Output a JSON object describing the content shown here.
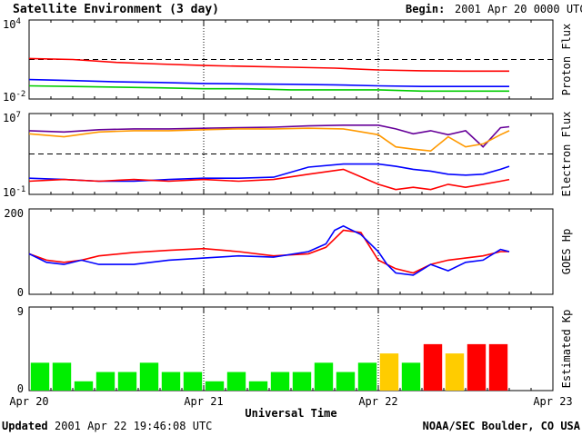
{
  "header": {
    "title": "Satellite Environment (3 day)",
    "begin_label": "Begin:",
    "begin_value": "2001 Apr 20 0000 UTC"
  },
  "footer": {
    "updated_label": "Updated",
    "updated_value": "2001 Apr 22 19:46:08 UTC",
    "credit": "NOAA/SEC Boulder, CO USA"
  },
  "chart_data": [
    {
      "type": "line",
      "ylabel": "Proton Flux",
      "yscale": "log",
      "ylim": [
        0.01,
        10000
      ],
      "ytick_labels": [
        {
          "base": "10",
          "exp": "4"
        },
        {
          "base": "10",
          "exp": "-2"
        }
      ],
      "threshold": 10,
      "x": [
        0,
        0.25,
        0.5,
        0.75,
        1,
        1.25,
        1.5,
        1.75,
        2,
        2.25,
        2.5,
        2.75
      ],
      "series": [
        {
          "color": "#ff0000",
          "values": [
            12,
            10,
            6,
            4.5,
            3.5,
            3,
            2.6,
            2.2,
            1.6,
            1.4,
            1.3,
            1.3
          ]
        },
        {
          "color": "#0000ff",
          "values": [
            0.3,
            0.25,
            0.2,
            0.18,
            0.15,
            0.14,
            0.13,
            0.12,
            0.1,
            0.09,
            0.09,
            0.09
          ]
        },
        {
          "color": "#00cc00",
          "values": [
            0.1,
            0.09,
            0.08,
            0.07,
            0.06,
            0.06,
            0.05,
            0.05,
            0.05,
            0.04,
            0.04,
            0.04
          ]
        }
      ]
    },
    {
      "type": "line",
      "ylabel": "Electron Flux",
      "yscale": "log",
      "ylim": [
        0.1,
        10000000
      ],
      "ytick_labels": [
        {
          "base": "10",
          "exp": "7"
        },
        {
          "base": "10",
          "exp": "-1"
        }
      ],
      "threshold": 1000,
      "x": [
        0,
        0.2,
        0.4,
        0.6,
        0.8,
        1,
        1.2,
        1.4,
        1.6,
        1.8,
        2,
        2.1,
        2.2,
        2.3,
        2.4,
        2.5,
        2.6,
        2.7,
        2.75
      ],
      "series": [
        {
          "color": "#660099",
          "values": [
            200000,
            150000,
            250000,
            300000,
            300000,
            350000,
            400000,
            450000,
            600000,
            700000,
            700000,
            300000,
            100000,
            200000,
            80000,
            200000,
            5000,
            400000,
            500000
          ]
        },
        {
          "color": "#ff9900",
          "values": [
            100000,
            50000,
            150000,
            200000,
            200000,
            250000,
            300000,
            300000,
            350000,
            300000,
            80000,
            5000,
            3000,
            2000,
            50000,
            5000,
            10000,
            80000,
            200000
          ]
        },
        {
          "color": "#0000ff",
          "values": [
            4,
            3,
            2,
            2,
            3,
            4,
            4,
            5,
            50,
            100,
            100,
            60,
            30,
            20,
            10,
            8,
            10,
            30,
            60
          ]
        },
        {
          "color": "#ff0000",
          "values": [
            2,
            3,
            2,
            3,
            2,
            3,
            2,
            3,
            10,
            30,
            1,
            0.3,
            0.5,
            0.3,
            1,
            0.5,
            1,
            2,
            3
          ]
        }
      ]
    },
    {
      "type": "line",
      "ylabel": "GOES Hp",
      "yscale": "linear",
      "ylim": [
        0,
        200
      ],
      "ytick_labels": [
        "200",
        "0"
      ],
      "x": [
        0,
        0.1,
        0.2,
        0.3,
        0.4,
        0.6,
        0.8,
        1,
        1.2,
        1.4,
        1.6,
        1.7,
        1.75,
        1.8,
        1.9,
        2,
        2.05,
        2.1,
        2.2,
        2.3,
        2.4,
        2.5,
        2.6,
        2.7,
        2.75
      ],
      "series": [
        {
          "color": "#ff0000",
          "values": [
            95,
            80,
            75,
            80,
            90,
            98,
            103,
            107,
            100,
            90,
            95,
            110,
            130,
            150,
            145,
            80,
            70,
            60,
            50,
            70,
            80,
            85,
            90,
            100,
            100
          ]
        },
        {
          "color": "#0000ff",
          "values": [
            95,
            75,
            70,
            80,
            70,
            70,
            80,
            85,
            90,
            87,
            100,
            118,
            150,
            160,
            140,
            100,
            70,
            50,
            45,
            70,
            55,
            75,
            80,
            105,
            100
          ]
        }
      ]
    },
    {
      "type": "bar",
      "ylabel": "Estimated Kp",
      "ylim": [
        0,
        9
      ],
      "ytick_labels": [
        "9",
        "0"
      ],
      "xlabel": "Universal Time",
      "x_tick_labels": [
        "Apr 20",
        "Apr 21",
        "Apr 22",
        "Apr 23"
      ],
      "values": [
        3,
        3,
        1,
        2,
        2,
        3,
        2,
        2,
        1,
        2,
        1,
        2,
        2,
        3,
        2,
        3,
        4,
        3,
        5,
        4,
        5,
        5
      ],
      "colors": [
        "#00ee00",
        "#00ee00",
        "#00ee00",
        "#00ee00",
        "#00ee00",
        "#00ee00",
        "#00ee00",
        "#00ee00",
        "#00ee00",
        "#00ee00",
        "#00ee00",
        "#00ee00",
        "#00ee00",
        "#00ee00",
        "#00ee00",
        "#00ee00",
        "#ffcc00",
        "#00ee00",
        "#ff0000",
        "#ffcc00",
        "#ff0000",
        "#ff0000"
      ]
    }
  ]
}
